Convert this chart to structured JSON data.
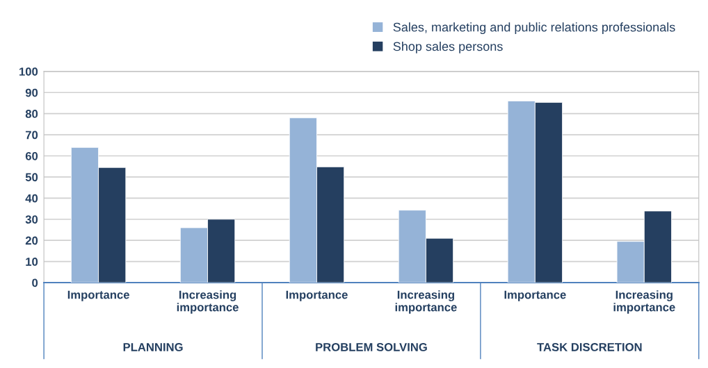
{
  "chart_data": {
    "type": "bar",
    "categories": [
      "Importance",
      "Increasing\nimportance",
      "Importance",
      "Increasing\nimportance",
      "Importance",
      "Increasing\nimportance"
    ],
    "series": [
      {
        "name": "Sales, marketing and public relations professionals",
        "color": "#95b3d7",
        "values": [
          64,
          26,
          78,
          34.3,
          86,
          19.5
        ]
      },
      {
        "name": "Shop sales persons",
        "color": "#253f60",
        "values": [
          54.5,
          30,
          54.8,
          21,
          85.3,
          33.9
        ]
      }
    ],
    "annotations": [
      "PLANNING",
      "PROBLEM SOLVING",
      "TASK DISCRETION"
    ],
    "ylim": [
      0,
      100
    ],
    "yticks": [
      0,
      10,
      20,
      30,
      40,
      50,
      60,
      70,
      80,
      90,
      100
    ],
    "grid": "y",
    "legend": "top right"
  }
}
